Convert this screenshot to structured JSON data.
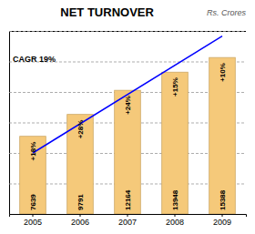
{
  "chart_data": {
    "type": "bar",
    "title": "NET TURNOVER",
    "subtitle": "Rs. Crores",
    "categories": [
      "2005",
      "2006",
      "2007",
      "2008",
      "2009"
    ],
    "values": [
      7639,
      9791,
      12164,
      13948,
      15388
    ],
    "color": "#F5C97A",
    "data_labels": true,
    "ylim": [
      0,
      18000
    ],
    "yticks": [
      0,
      3000,
      6000,
      9000,
      12000,
      15000,
      18000
    ],
    "grid": true,
    "tick_labels": "x",
    "annotations": [
      {
        "text": "CAGR 19%"
      },
      {
        "text": "+18%",
        "category": "2005"
      },
      {
        "text": "+28%",
        "category": "2006"
      },
      {
        "text": "+24%",
        "category": "2007"
      },
      {
        "text": "+15%",
        "category": "2008"
      },
      {
        "text": "+10%",
        "category": "2009"
      }
    ],
    "trend_line": {
      "type": "line",
      "x": [
        "2005",
        "2009"
      ],
      "values": [
        6000,
        17500
      ],
      "color": "blue"
    }
  }
}
